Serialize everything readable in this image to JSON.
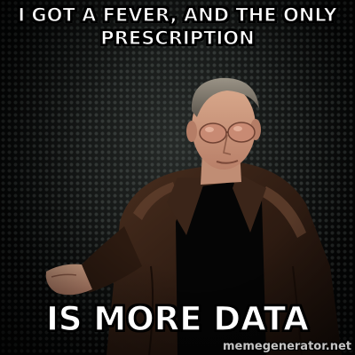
{
  "meme": {
    "top_text": "I GOT A FEVER, AND THE ONLY PRESCRIPTION",
    "bottom_text": "IS MORE DATA",
    "watermark": "memegenerator.net"
  },
  "colors": {
    "caption_fill": "#ffffff",
    "caption_outline": "#000000",
    "jacket": "#3a2418",
    "background": "#141616"
  }
}
